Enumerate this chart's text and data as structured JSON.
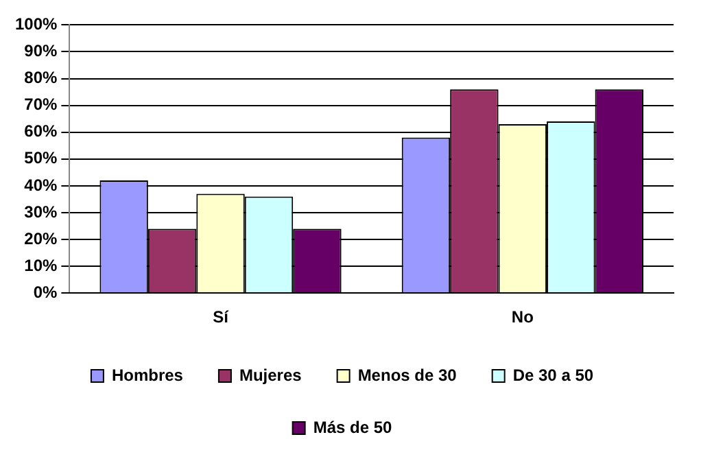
{
  "chart_data": {
    "type": "bar",
    "categories": [
      "Sí",
      "No"
    ],
    "series": [
      {
        "name": "Hombres",
        "color": "#9999ff",
        "values": [
          42,
          58
        ]
      },
      {
        "name": "Mujeres",
        "color": "#993366",
        "values": [
          24,
          76
        ]
      },
      {
        "name": "Menos de 30",
        "color": "#ffffcc",
        "values": [
          37,
          63
        ]
      },
      {
        "name": "De 30 a 50",
        "color": "#ccffff",
        "values": [
          36,
          64
        ]
      },
      {
        "name": "Más de 50",
        "color": "#660066",
        "values": [
          24,
          76
        ]
      }
    ],
    "ylim": [
      0,
      100
    ],
    "yticks": [
      {
        "value": 0,
        "label": "0%"
      },
      {
        "value": 10,
        "label": "10%"
      },
      {
        "value": 20,
        "label": "20%"
      },
      {
        "value": 30,
        "label": "30%"
      },
      {
        "value": 40,
        "label": "40%"
      },
      {
        "value": 50,
        "label": "50%"
      },
      {
        "value": 60,
        "label": "60%"
      },
      {
        "value": 70,
        "label": "70%"
      },
      {
        "value": 80,
        "label": "80%"
      },
      {
        "value": 90,
        "label": "90%"
      },
      {
        "value": 100,
        "label": "100%"
      }
    ],
    "grid": "y",
    "legend": "bottom"
  }
}
